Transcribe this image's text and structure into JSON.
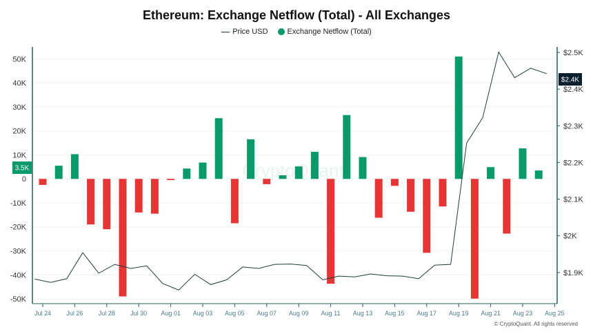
{
  "chart_data": {
    "type": "bar+line",
    "title": "Ethereum: Exchange Netflow (Total) - All Exchanges",
    "legend": [
      {
        "name": "Price USD",
        "marker": "line"
      },
      {
        "name": "Exchange Netflow (Total)",
        "marker": "dot"
      }
    ],
    "y_left": {
      "ticks": [
        "50K",
        "40K",
        "30K",
        "20K",
        "10K",
        "0",
        "-10K",
        "-20K",
        "-30K",
        "-40K",
        "-50K"
      ],
      "range": [
        -52000,
        55000
      ]
    },
    "y_right": {
      "ticks": [
        "$2.5K",
        "$2.4K",
        "$2.3K",
        "$2.2K",
        "$2.1K",
        "$2K",
        "$1.9K"
      ],
      "range": [
        1815,
        2515
      ]
    },
    "x_ticks": [
      "Jul 24",
      "Jul 26",
      "Jul 28",
      "Jul 30",
      "Aug 01",
      "Aug 03",
      "Aug 05",
      "Aug 07",
      "Aug 09",
      "Aug 11",
      "Aug 13",
      "Aug 15",
      "Aug 17",
      "Aug 19",
      "Aug 21",
      "Aug 23",
      "Aug 25"
    ],
    "dates": [
      "Jul 24",
      "Jul 25",
      "Jul 26",
      "Jul 27",
      "Jul 28",
      "Jul 29",
      "Jul 30",
      "Jul 31",
      "Aug 01",
      "Aug 02",
      "Aug 03",
      "Aug 04",
      "Aug 05",
      "Aug 06",
      "Aug 07",
      "Aug 08",
      "Aug 09",
      "Aug 10",
      "Aug 11",
      "Aug 12",
      "Aug 13",
      "Aug 14",
      "Aug 15",
      "Aug 16",
      "Aug 17",
      "Aug 18",
      "Aug 19",
      "Aug 20",
      "Aug 21",
      "Aug 22",
      "Aug 23",
      "Aug 24"
    ],
    "netflow": [
      -2500,
      5500,
      10300,
      -19000,
      -21000,
      -49000,
      -14000,
      -14500,
      -500,
      4300,
      6800,
      25300,
      -18500,
      16500,
      -2200,
      1500,
      5200,
      11300,
      -43700,
      26600,
      9100,
      -16200,
      -2900,
      -13700,
      -30800,
      -11500,
      51000,
      -49900,
      4900,
      -22800,
      12700,
      3500
    ],
    "price": [
      1882,
      1873,
      1883,
      1954,
      1898,
      1922,
      1911,
      1918,
      1870,
      1852,
      1895,
      1867,
      1880,
      1915,
      1911,
      1922,
      1923,
      1919,
      1880,
      1890,
      1888,
      1896,
      1891,
      1890,
      1883,
      1920,
      1922,
      2253,
      2322,
      2501,
      2431,
      2457,
      2442
    ],
    "price_x_offset": -0.5,
    "current_values": {
      "netflow": "3.5K",
      "price": "$2.4K"
    },
    "watermark": "CryptoQuant",
    "copyright": "© CryptoQuant. All rights reserved",
    "colors": {
      "positive": "#0a9a69",
      "negative": "#e53535",
      "price_line": "#1d3b3b",
      "axis": "#1f5f5f",
      "tag": "#0a9a69",
      "price_tag": "#0b1f2e",
      "grid": "#eaf4f4"
    }
  }
}
